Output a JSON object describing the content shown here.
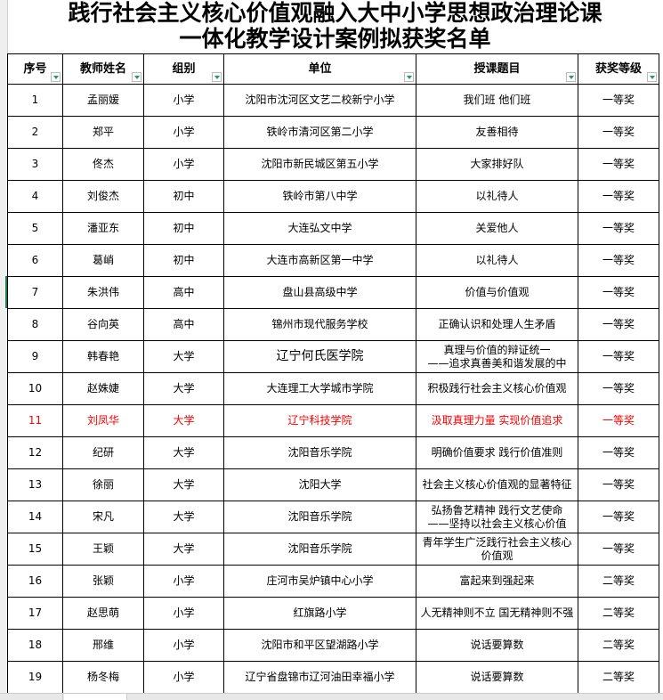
{
  "title": {
    "line1": "践行社会主义核心价值观融入大中小学思想政治理论课",
    "line2": "一体化教学设计案例拟获奖名单"
  },
  "columns": [
    "序号",
    "教师姓名",
    "组别",
    "单位",
    "授课题目",
    "获奖等级"
  ],
  "rows": [
    {
      "no": "1",
      "name": "孟丽媛",
      "group": "小学",
      "unit": "沈阳市沈河区文艺二校新宁小学",
      "topic": "我们班  他们班",
      "award": "一等奖"
    },
    {
      "no": "2",
      "name": "郑平",
      "group": "小学",
      "unit": "铁岭市清河区第二小学",
      "topic": "友善相待",
      "award": "一等奖"
    },
    {
      "no": "3",
      "name": "佟杰",
      "group": "小学",
      "unit": "沈阳市新民城区第五小学",
      "topic": "大家排好队",
      "award": "一等奖"
    },
    {
      "no": "4",
      "name": "刘俊杰",
      "group": "初中",
      "unit": "铁岭市第八中学",
      "topic": "以礼待人",
      "award": "一等奖"
    },
    {
      "no": "5",
      "name": "潘亚东",
      "group": "初中",
      "unit": "大连弘文中学",
      "topic": "关爱他人",
      "award": "一等奖"
    },
    {
      "no": "6",
      "name": "葛峭",
      "group": "初中",
      "unit": "大连市高新区第一中学",
      "topic": "以礼待人",
      "award": "一等奖"
    },
    {
      "no": "7",
      "name": "朱洪伟",
      "group": "高中",
      "unit": "盘山县高级中学",
      "topic": "价值与价值观",
      "award": "一等奖"
    },
    {
      "no": "8",
      "name": "谷向英",
      "group": "高中",
      "unit": "锦州市现代服务学校",
      "topic": "正确认识和处理人生矛盾",
      "award": "一等奖"
    },
    {
      "no": "9",
      "name": "韩春艳",
      "group": "大学",
      "unit": "辽宁何氏医学院",
      "topic": "真理与价值的辩证统一\n——追求真善美和谐发展的中",
      "award": "一等奖"
    },
    {
      "no": "10",
      "name": "赵姝婕",
      "group": "大学",
      "unit": "大连理工大学城市学院",
      "topic": "积极践行社会主义核心价值观",
      "award": "一等奖"
    },
    {
      "no": "11",
      "name": "刘凤华",
      "group": "大学",
      "unit": "辽宁科技学院",
      "topic": "汲取真理力量  实现价值追求",
      "award": "一等奖",
      "highlight": true
    },
    {
      "no": "12",
      "name": "纪研",
      "group": "大学",
      "unit": "沈阳音乐学院",
      "topic": "明确价值要求   践行价值准则",
      "award": "一等奖"
    },
    {
      "no": "13",
      "name": "徐丽",
      "group": "大学",
      "unit": "沈阳大学",
      "topic": "社会主义核心价值观的显著特征",
      "award": "一等奖"
    },
    {
      "no": "14",
      "name": "宋凡",
      "group": "大学",
      "unit": "沈阳音乐学院",
      "topic": "弘扬鲁艺精神  践行文艺使命\n——坚持以社会主义核心价值",
      "award": "一等奖"
    },
    {
      "no": "15",
      "name": "王颖",
      "group": "大学",
      "unit": "沈阳音乐学院",
      "topic": "青年学生广泛践行社会主义核心价值观",
      "award": "一等奖"
    },
    {
      "no": "16",
      "name": "张颖",
      "group": "小学",
      "unit": "庄河市吴炉镇中心小学",
      "topic": "富起来到强起来",
      "award": "二等奖"
    },
    {
      "no": "17",
      "name": "赵思萌",
      "group": "小学",
      "unit": "红旗路小学",
      "topic": "人无精神则不立  国无精神则不强",
      "award": "二等奖"
    },
    {
      "no": "18",
      "name": "邢维",
      "group": "小学",
      "unit": "沈阳市和平区望湖路小学",
      "topic": "说话要算数",
      "award": "二等奖"
    },
    {
      "no": "19",
      "name": "杨冬梅",
      "group": "小学",
      "unit": "辽宁省盘锦市辽河油田幸福小学",
      "topic": "说话要算数",
      "award": "二等奖"
    }
  ],
  "colors": {
    "highlight": "#ff0000",
    "filter_arrow": "#1a9e6a"
  },
  "icons": {
    "filter": "filter-dropdown-icon"
  }
}
